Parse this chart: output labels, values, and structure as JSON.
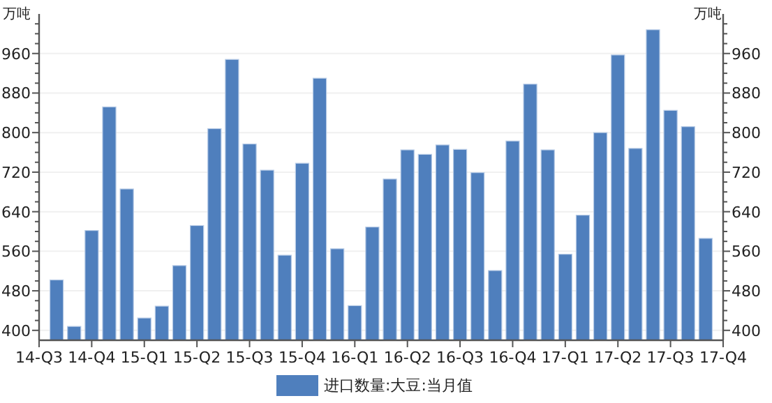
{
  "chart_data": {
    "type": "bar",
    "ylabel": "万吨",
    "y2label": "万吨",
    "categories": [
      "14-Q3",
      null,
      null,
      "14-Q4",
      null,
      null,
      "15-Q1",
      null,
      null,
      "15-Q2",
      null,
      null,
      "15-Q3",
      null,
      null,
      "15-Q4",
      null,
      null,
      "16-Q1",
      null,
      null,
      "16-Q2",
      null,
      null,
      "16-Q3",
      null,
      null,
      "16-Q4",
      null,
      null,
      "17-Q1",
      null,
      null,
      "17-Q2",
      null,
      null,
      "17-Q3",
      null,
      null,
      "17-Q4"
    ],
    "series": [
      {
        "name": "进口数量:大豆:当月值",
        "color": "#4f7fbd",
        "values": [
          null,
          502,
          408,
          602,
          852,
          686,
          425,
          449,
          531,
          612,
          808,
          948,
          777,
          724,
          552,
          738,
          910,
          565,
          450,
          609,
          706,
          765,
          756,
          775,
          766,
          719,
          521,
          783,
          898,
          765,
          554,
          633,
          800,
          957,
          768,
          1008,
          845,
          812,
          586,
          null
        ]
      }
    ],
    "ylim": [
      380,
      1040
    ],
    "yticks": [
      400,
      {
        "value": 420,
        "label": null
      },
      {
        "value": 440,
        "label": null
      },
      {
        "value": 460,
        "label": null
      },
      480,
      {
        "value": 500,
        "label": null
      },
      {
        "value": 520,
        "label": null
      },
      {
        "value": 540,
        "label": null
      },
      560,
      {
        "value": 580,
        "label": null
      },
      {
        "value": 600,
        "label": null
      },
      {
        "value": 620,
        "label": null
      },
      640,
      {
        "value": 660,
        "label": null
      },
      {
        "value": 680,
        "label": null
      },
      {
        "value": 700,
        "label": null
      },
      720,
      {
        "value": 740,
        "label": null
      },
      {
        "value": 760,
        "label": null
      },
      {
        "value": 780,
        "label": null
      },
      800,
      {
        "value": 820,
        "label": null
      },
      {
        "value": 840,
        "label": null
      },
      {
        "value": 860,
        "label": null
      },
      880,
      {
        "value": 900,
        "label": null
      },
      {
        "value": 920,
        "label": null
      },
      {
        "value": 940,
        "label": null
      },
      960,
      {
        "value": 980,
        "label": null
      },
      {
        "value": 1000,
        "label": null
      },
      {
        "value": 1020,
        "label": null
      }
    ],
    "y2lim": [
      380,
      1040
    ],
    "y2ticks": [
      400,
      {
        "value": 420,
        "label": null
      },
      {
        "value": 440,
        "label": null
      },
      {
        "value": 460,
        "label": null
      },
      480,
      {
        "value": 500,
        "label": null
      },
      {
        "value": 520,
        "label": null
      },
      {
        "value": 540,
        "label": null
      },
      560,
      {
        "value": 580,
        "label": null
      },
      {
        "value": 600,
        "label": null
      },
      {
        "value": 620,
        "label": null
      },
      640,
      {
        "value": 660,
        "label": null
      },
      {
        "value": 680,
        "label": null
      },
      {
        "value": 700,
        "label": null
      },
      720,
      {
        "value": 740,
        "label": null
      },
      {
        "value": 760,
        "label": null
      },
      {
        "value": 780,
        "label": null
      },
      800,
      {
        "value": 820,
        "label": null
      },
      {
        "value": 840,
        "label": null
      },
      {
        "value": 860,
        "label": null
      },
      880,
      {
        "value": 900,
        "label": null
      },
      {
        "value": 920,
        "label": null
      },
      {
        "value": 940,
        "label": null
      },
      960,
      {
        "value": 980,
        "label": null
      },
      {
        "value": 1000,
        "label": null
      },
      {
        "value": 1020,
        "label": null
      }
    ],
    "grid": "y",
    "legend": "bottom"
  }
}
